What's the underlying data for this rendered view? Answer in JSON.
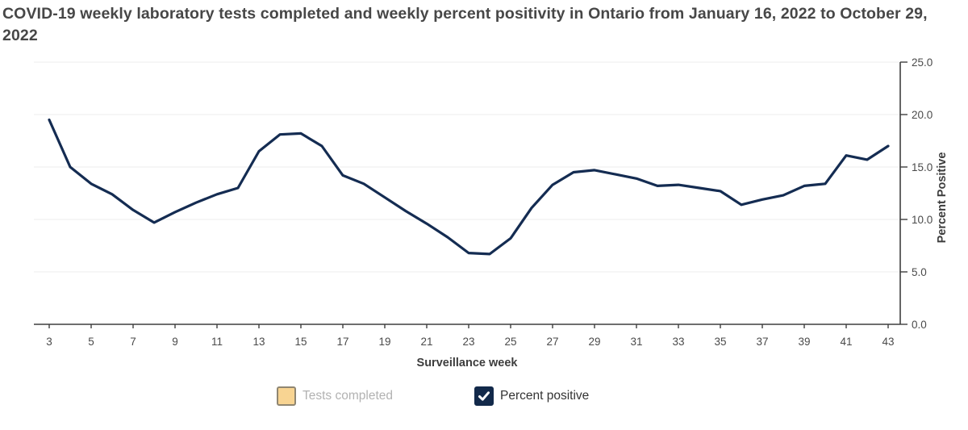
{
  "chart_data": {
    "type": "line",
    "title": "COVID-19 weekly laboratory tests completed and weekly percent positivity  in Ontario from January 16, 2022 to October 29, 2022",
    "x_label": "Surveillance week",
    "y_right_label": "Percent Positive",
    "x": [
      3,
      4,
      5,
      6,
      7,
      8,
      9,
      10,
      11,
      12,
      13,
      14,
      15,
      16,
      17,
      18,
      19,
      20,
      21,
      22,
      23,
      24,
      25,
      26,
      27,
      28,
      29,
      30,
      31,
      32,
      33,
      34,
      35,
      36,
      37,
      38,
      39,
      40,
      41,
      42,
      43
    ],
    "series": [
      {
        "name": "Percent positive",
        "axis": "right",
        "color": "#142C52",
        "values": [
          19.5,
          15.0,
          13.4,
          12.4,
          10.9,
          9.7,
          10.7,
          11.6,
          12.4,
          13.0,
          16.5,
          18.1,
          18.2,
          17.0,
          14.2,
          13.4,
          12.1,
          10.8,
          9.6,
          8.3,
          6.8,
          6.7,
          8.2,
          11.1,
          13.3,
          14.5,
          14.7,
          14.3,
          13.9,
          13.2,
          13.3,
          13.0,
          12.7,
          11.4,
          11.9,
          12.3,
          13.2,
          13.4,
          16.1,
          15.7,
          17.0
        ]
      }
    ],
    "hidden_series": [
      {
        "name": "Tests completed",
        "visible": false
      }
    ],
    "xticks": [
      3,
      5,
      7,
      9,
      11,
      13,
      15,
      17,
      19,
      21,
      23,
      25,
      27,
      29,
      31,
      33,
      35,
      37,
      39,
      41,
      43
    ],
    "yticks_right": [
      0,
      5,
      10,
      15,
      20,
      25
    ],
    "ytick_labels_right": [
      "0.0",
      "5.0",
      "10.0",
      "15.0",
      "20.0",
      "25.0"
    ],
    "ylim_right": [
      0,
      25
    ],
    "grid": "horizontal",
    "legend": {
      "position": "bottom",
      "items": [
        {
          "label": "Tests completed",
          "checked": false,
          "swatch": "#F8D492"
        },
        {
          "label": "Percent positive",
          "checked": true,
          "swatch": "#12294A"
        }
      ]
    }
  },
  "colors": {
    "line": "#142C52",
    "grid": "#ECECEC",
    "axis": "#3F3F3F",
    "tick_text": "#4A4A4A",
    "axis_title_text": "#3D3D3D",
    "title_text": "#474747"
  }
}
